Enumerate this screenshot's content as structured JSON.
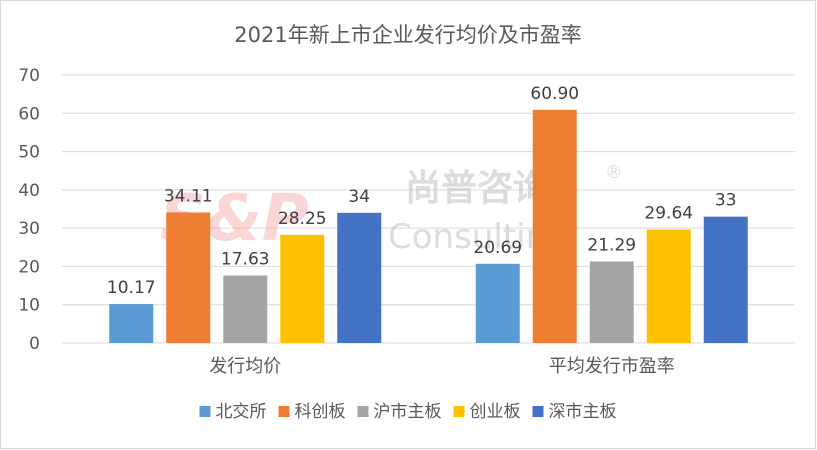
{
  "watermark": {
    "logo": "S&P",
    "cn": "尚普咨询",
    "en": "Consulting",
    "reg": "®"
  },
  "chart_data": {
    "type": "bar",
    "title": "2021年新上市企业发行均价及市盈率",
    "categories": [
      "发行均价",
      "平均发行市盈率"
    ],
    "series": [
      {
        "name": "北交所",
        "color": "#5b9bd5",
        "values": [
          10.17,
          20.69
        ],
        "labels": [
          "10.17",
          "20.69"
        ]
      },
      {
        "name": "科创板",
        "color": "#ed7d31",
        "values": [
          34.11,
          60.9
        ],
        "labels": [
          "34.11",
          "60.90"
        ]
      },
      {
        "name": "沪市主板",
        "color": "#a5a5a5",
        "values": [
          17.63,
          21.29
        ],
        "labels": [
          "17.63",
          "21.29"
        ]
      },
      {
        "name": "创业板",
        "color": "#ffc000",
        "values": [
          28.25,
          29.64
        ],
        "labels": [
          "28.25",
          "29.64"
        ]
      },
      {
        "name": "深市主板",
        "color": "#4472c4",
        "values": [
          34,
          33
        ],
        "labels": [
          "34",
          "33"
        ]
      }
    ],
    "yticks": [
      "0",
      "10",
      "20",
      "30",
      "40",
      "50",
      "60",
      "70"
    ],
    "ylim": [
      0,
      70
    ],
    "grid": true,
    "legend_position": "bottom"
  }
}
